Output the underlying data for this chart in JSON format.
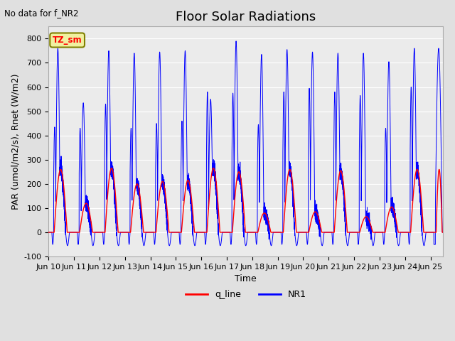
{
  "title": "Floor Solar Radiations",
  "annotation_text": "No data for f_NR2",
  "xlabel": "Time",
  "ylabel": "PAR (umol/m2/s), Rnet (W/m2)",
  "ylim": [
    -100,
    850
  ],
  "xtick_labels": [
    "Jun 10",
    "Jun 11",
    "Jun 12",
    "Jun 13",
    "Jun 14",
    "Jun 15",
    "Jun 16",
    "Jun 17",
    "Jun 18",
    "Jun 19",
    "Jun 20",
    "Jun 21",
    "Jun 22",
    "Jun 23",
    "Jun 24",
    "Jun 25"
  ],
  "ytick_values": [
    -100,
    0,
    100,
    200,
    300,
    400,
    500,
    600,
    700,
    800
  ],
  "legend_label_red": "q_line",
  "legend_label_blue": "NR1",
  "legend_box_text": "TZ_sm",
  "bg_color": "#e0e0e0",
  "plot_bg_color": "#ebebeb",
  "line_color_red": "red",
  "line_color_blue": "blue",
  "title_fontsize": 13,
  "label_fontsize": 9,
  "tick_fontsize": 8,
  "day_peaks_nr1": [
    760,
    535,
    750,
    740,
    745,
    750,
    550,
    790,
    735,
    755,
    745,
    740,
    740,
    705,
    760
  ],
  "day_peaks_nr1_second": [
    435,
    430,
    530,
    430,
    450,
    460,
    580,
    575,
    445,
    580,
    595,
    580,
    565,
    430,
    600
  ],
  "day_peaks_q": [
    260,
    120,
    265,
    200,
    210,
    215,
    265,
    250,
    80,
    260,
    85,
    255,
    65,
    105,
    260
  ]
}
